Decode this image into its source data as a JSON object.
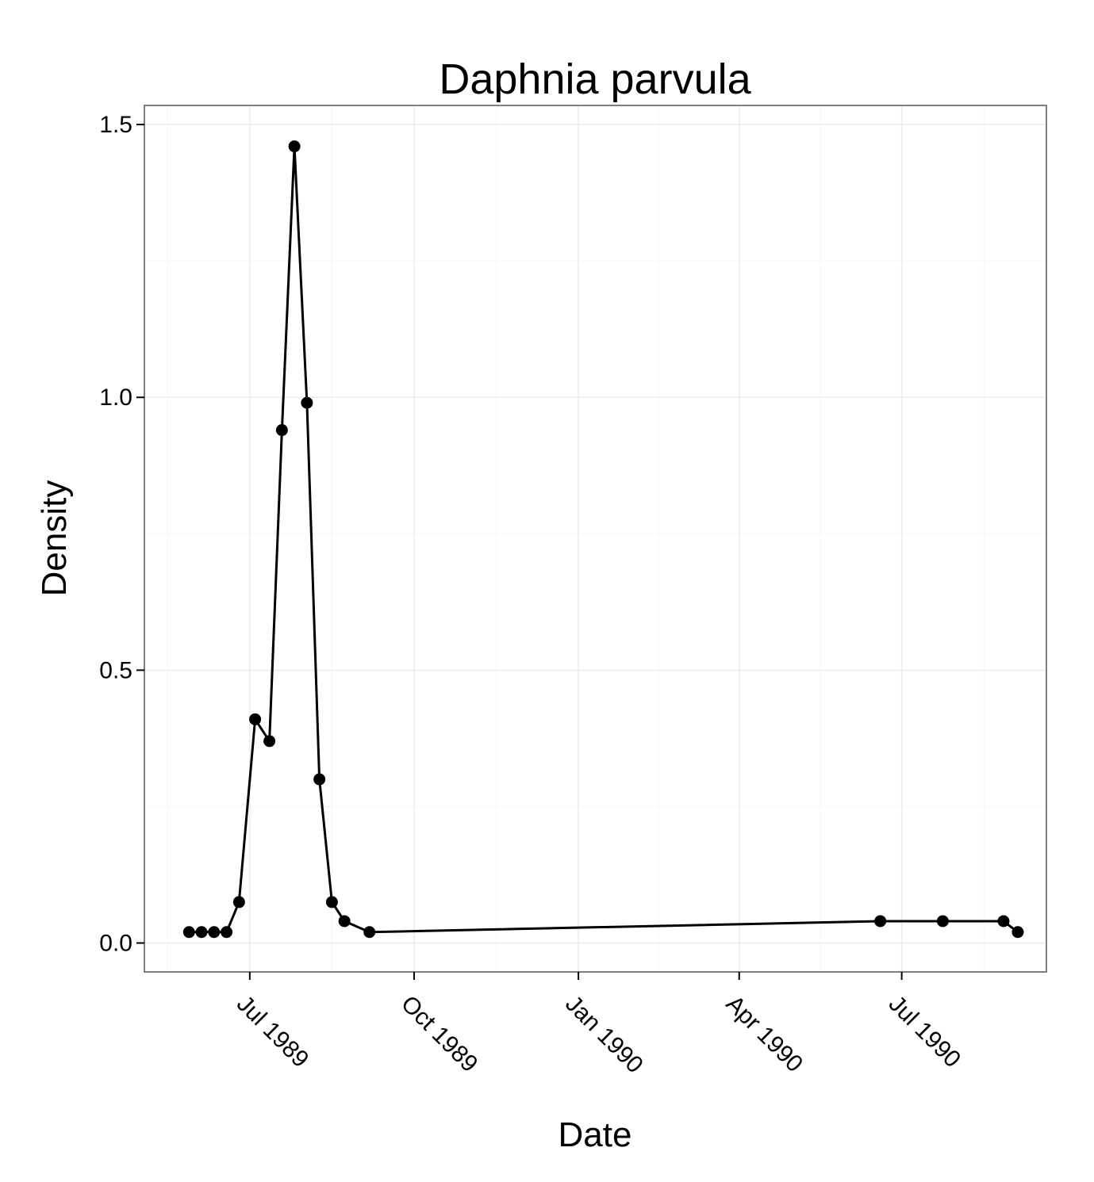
{
  "chart_data": {
    "type": "line",
    "title": "Daphnia parvula",
    "xlabel": "Date",
    "ylabel": "Density",
    "x_ticks": [
      {
        "date": "1989-07-01",
        "label": "Jul 1989"
      },
      {
        "date": "1989-10-01",
        "label": "Oct 1989"
      },
      {
        "date": "1990-01-01",
        "label": "Jan 1990"
      },
      {
        "date": "1990-04-01",
        "label": "Apr 1990"
      },
      {
        "date": "1990-07-01",
        "label": "Jul 1990"
      }
    ],
    "y_ticks": [
      {
        "value": 0.0,
        "label": "0.0"
      },
      {
        "value": 0.5,
        "label": "0.5"
      },
      {
        "value": 1.0,
        "label": "1.0"
      },
      {
        "value": 1.5,
        "label": "1.5"
      }
    ],
    "xlim": [
      "1989-05-03",
      "1990-09-20"
    ],
    "ylim": [
      -0.053,
      1.535
    ],
    "grid": true,
    "series": [
      {
        "color": "#000000",
        "points": [
          {
            "x": "1989-05-28",
            "y": 0.02
          },
          {
            "x": "1989-06-04",
            "y": 0.02
          },
          {
            "x": "1989-06-11",
            "y": 0.02
          },
          {
            "x": "1989-06-18",
            "y": 0.02
          },
          {
            "x": "1989-06-25",
            "y": 0.075
          },
          {
            "x": "1989-07-04",
            "y": 0.41
          },
          {
            "x": "1989-07-12",
            "y": 0.37
          },
          {
            "x": "1989-07-19",
            "y": 0.94
          },
          {
            "x": "1989-07-26",
            "y": 1.46
          },
          {
            "x": "1989-08-02",
            "y": 0.99
          },
          {
            "x": "1989-08-09",
            "y": 0.3
          },
          {
            "x": "1989-08-16",
            "y": 0.075
          },
          {
            "x": "1989-08-23",
            "y": 0.04
          },
          {
            "x": "1989-09-06",
            "y": 0.02
          },
          {
            "x": "1990-06-19",
            "y": 0.04
          },
          {
            "x": "1990-07-24",
            "y": 0.04
          },
          {
            "x": "1990-08-27",
            "y": 0.04
          },
          {
            "x": "1990-09-04",
            "y": 0.02
          }
        ]
      }
    ]
  }
}
